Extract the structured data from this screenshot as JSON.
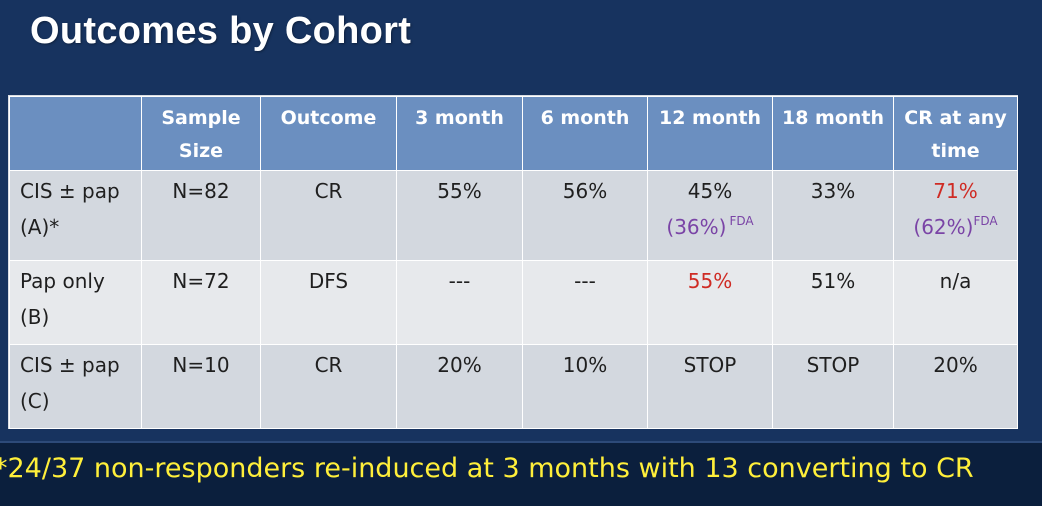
{
  "title": "Outcomes by Cohort",
  "table": {
    "headers": [
      "",
      "Sample Size",
      "Outcome",
      "3 month",
      "6 month",
      "12 month",
      "18 month",
      "CR at any time"
    ],
    "rows": [
      {
        "cohort_line1": "CIS ± pap",
        "cohort_line2": "(A)*",
        "sample": "N=82",
        "outcome": "CR",
        "m3": "55%",
        "m6": "56%",
        "m12": "45%",
        "m12_fda": "(36%)",
        "m12_fda_sup": "FDA",
        "m18": "33%",
        "cr_any": "71%",
        "cr_any_fda": "(62%)",
        "cr_any_fda_sup": "FDA"
      },
      {
        "cohort_line1": "Pap only",
        "cohort_line2": "(B)",
        "sample": "N=72",
        "outcome": "DFS",
        "m3": "---",
        "m6": "---",
        "m12": "55%",
        "m18": "51%",
        "cr_any": "n/a"
      },
      {
        "cohort_line1": "CIS ± pap",
        "cohort_line2": "(C)",
        "sample": "N=10",
        "outcome": "CR",
        "m3": "20%",
        "m6": "10%",
        "m12": "STOP",
        "m18": "STOP",
        "cr_any": "20%"
      }
    ]
  },
  "footnote": "*24/37 non-responders re-induced at 3 months with 13 converting to CR",
  "colors": {
    "background": "#17335f",
    "header": "#6b8fc0",
    "row_dark": "#d3d8df",
    "row_light": "#e7e9ec",
    "highlight_red": "#cf2b24",
    "fda_purple": "#7a44a6",
    "footnote_yellow": "#ffef3a"
  }
}
